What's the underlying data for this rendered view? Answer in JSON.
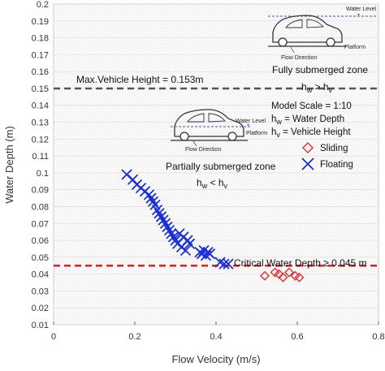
{
  "chart_data": {
    "type": "scatter",
    "xlabel": "Flow Velocity (m/s)",
    "ylabel": "Water Depth (m)",
    "xlim": [
      0,
      0.8
    ],
    "ylim": [
      0.01,
      0.2
    ],
    "xticks": [
      "0",
      "0.2",
      "0.4",
      "0.6",
      "0.8"
    ],
    "yticks": [
      "0.01",
      "0.02",
      "0.03",
      "0.04",
      "0.05",
      "0.06",
      "0.07",
      "0.08",
      "0.09",
      "0.1",
      "0.11",
      "0.12",
      "0.13",
      "0.14",
      "0.15",
      "0.16",
      "0.17",
      "0.18",
      "0.19",
      "0.2"
    ],
    "grid": true,
    "series": [
      {
        "name": "Sliding",
        "marker": "diamond",
        "color": "#e03030",
        "x": [
          0.52,
          0.545,
          0.555,
          0.565,
          0.58,
          0.595,
          0.605
        ],
        "y": [
          0.039,
          0.041,
          0.04,
          0.038,
          0.041,
          0.039,
          0.038
        ]
      },
      {
        "name": "Floating",
        "marker": "x",
        "color": "#1c2fd6",
        "x": [
          0.18,
          0.195,
          0.205,
          0.215,
          0.225,
          0.235,
          0.24,
          0.245,
          0.25,
          0.255,
          0.26,
          0.265,
          0.27,
          0.275,
          0.28,
          0.285,
          0.29,
          0.295,
          0.3,
          0.305,
          0.31,
          0.315,
          0.32,
          0.325,
          0.33,
          0.335,
          0.36,
          0.365,
          0.37,
          0.375,
          0.38,
          0.385,
          0.41,
          0.42,
          0.43
        ],
        "y": [
          0.099,
          0.096,
          0.093,
          0.091,
          0.089,
          0.087,
          0.085,
          0.083,
          0.081,
          0.078,
          0.076,
          0.074,
          0.072,
          0.07,
          0.068,
          0.066,
          0.064,
          0.062,
          0.06,
          0.058,
          0.064,
          0.056,
          0.062,
          0.054,
          0.06,
          0.058,
          0.053,
          0.052,
          0.054,
          0.051,
          0.053,
          0.052,
          0.047,
          0.046,
          0.046
        ]
      }
    ],
    "reference_lines": [
      {
        "y": 0.15,
        "label": "Max.Vehicle Height = 0.153m",
        "color": "#555555"
      },
      {
        "y": 0.045,
        "label": "Critical Water Depth ≥ 0.045 m",
        "color": "#e02020"
      }
    ],
    "annotations": {
      "fully_zone": "Fully submerged zone",
      "fully_rel_main": "h",
      "fully_rel_sub1": "w",
      "fully_rel_op": " > h",
      "fully_rel_sub2": "v",
      "partial_zone": "Partially submerged zone",
      "partial_rel_main": "h",
      "partial_rel_sub1": "w",
      "partial_rel_op": " < h",
      "partial_rel_sub2": "v",
      "model_scale": "Model Scale = 1:10",
      "hw_def_main": "h",
      "hw_def_sub": "w",
      "hw_def_rest": " = Water Depth",
      "hv_def_main": "h",
      "hv_def_sub": "v",
      "hv_def_rest": " = Vehicle Height",
      "fig_water_level": "Water Level",
      "fig_platform": "Platform",
      "fig_flow_direction": "Flow Direction"
    },
    "legend": [
      "Sliding",
      "Floating"
    ]
  }
}
